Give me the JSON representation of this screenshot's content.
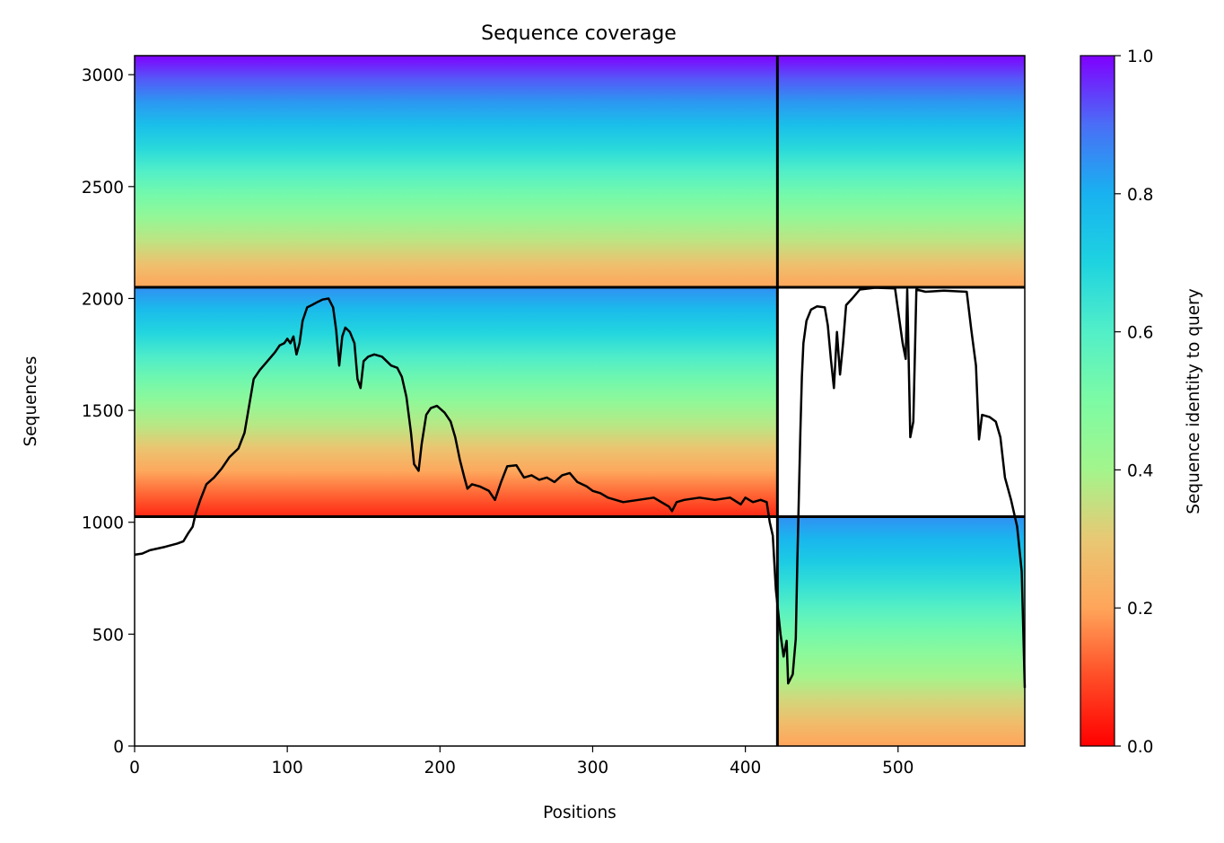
{
  "chart_data": {
    "type": "heatmap",
    "title": "Sequence coverage",
    "xlabel": "Positions",
    "ylabel": "Sequences",
    "xlim": [
      0,
      583
    ],
    "ylim": [
      0,
      3085
    ],
    "x_ticks": [
      0,
      100,
      200,
      300,
      400,
      500
    ],
    "y_ticks": [
      0,
      500,
      1000,
      1500,
      2000,
      2500,
      3000
    ],
    "grid": false,
    "colorbar": {
      "label": "Sequence identity to query",
      "colormap": "rainbow_r",
      "range": [
        0,
        1
      ],
      "ticks": [
        "0.0",
        "0.2",
        "0.4",
        "0.6",
        "0.8",
        "1.0"
      ]
    },
    "block_boundaries": {
      "vertical_lines_at_position": [
        421
      ],
      "horizontal_lines_at_sequence": [
        1025,
        2050
      ]
    },
    "coverage_blocks": [
      {
        "x_range": [
          0,
          421
        ],
        "y_range": [
          2050,
          3085
        ],
        "identity_top": 1.0,
        "identity_bottom": 0.2
      },
      {
        "x_range": [
          0,
          421
        ],
        "y_range": [
          1025,
          2050
        ],
        "identity_top": 0.85,
        "identity_bottom": 0.05
      },
      {
        "x_range": [
          421,
          583
        ],
        "y_range": [
          2050,
          3085
        ],
        "identity_top": 1.0,
        "identity_bottom": 0.2
      },
      {
        "x_range": [
          421,
          583
        ],
        "y_range": [
          0,
          1025
        ],
        "identity_top": 0.85,
        "identity_bottom": 0.2
      }
    ],
    "series": [
      {
        "type": "line",
        "color": "#000000",
        "points": [
          [
            0,
            855
          ],
          [
            5,
            860
          ],
          [
            10,
            875
          ],
          [
            20,
            890
          ],
          [
            28,
            905
          ],
          [
            32,
            915
          ],
          [
            35,
            950
          ],
          [
            38,
            980
          ],
          [
            40,
            1040
          ],
          [
            43,
            1100
          ],
          [
            47,
            1170
          ],
          [
            52,
            1200
          ],
          [
            57,
            1240
          ],
          [
            62,
            1290
          ],
          [
            68,
            1330
          ],
          [
            72,
            1400
          ],
          [
            75,
            1520
          ],
          [
            78,
            1640
          ],
          [
            82,
            1680
          ],
          [
            87,
            1720
          ],
          [
            92,
            1760
          ],
          [
            95,
            1790
          ],
          [
            98,
            1800
          ],
          [
            100,
            1820
          ],
          [
            102,
            1800
          ],
          [
            104,
            1830
          ],
          [
            106,
            1750
          ],
          [
            108,
            1800
          ],
          [
            110,
            1900
          ],
          [
            113,
            1960
          ],
          [
            116,
            1970
          ],
          [
            120,
            1985
          ],
          [
            123,
            1995
          ],
          [
            127,
            2000
          ],
          [
            130,
            1960
          ],
          [
            132,
            1860
          ],
          [
            134,
            1700
          ],
          [
            136,
            1830
          ],
          [
            138,
            1870
          ],
          [
            141,
            1850
          ],
          [
            144,
            1800
          ],
          [
            146,
            1640
          ],
          [
            148,
            1600
          ],
          [
            150,
            1720
          ],
          [
            153,
            1740
          ],
          [
            157,
            1750
          ],
          [
            162,
            1740
          ],
          [
            168,
            1700
          ],
          [
            172,
            1690
          ],
          [
            175,
            1650
          ],
          [
            178,
            1560
          ],
          [
            181,
            1400
          ],
          [
            183,
            1260
          ],
          [
            186,
            1230
          ],
          [
            188,
            1350
          ],
          [
            191,
            1480
          ],
          [
            194,
            1510
          ],
          [
            198,
            1520
          ],
          [
            203,
            1490
          ],
          [
            207,
            1450
          ],
          [
            210,
            1380
          ],
          [
            213,
            1280
          ],
          [
            216,
            1200
          ],
          [
            218,
            1150
          ],
          [
            221,
            1170
          ],
          [
            226,
            1160
          ],
          [
            232,
            1140
          ],
          [
            236,
            1100
          ],
          [
            240,
            1180
          ],
          [
            244,
            1250
          ],
          [
            250,
            1255
          ],
          [
            255,
            1200
          ],
          [
            260,
            1210
          ],
          [
            265,
            1190
          ],
          [
            270,
            1200
          ],
          [
            275,
            1180
          ],
          [
            280,
            1210
          ],
          [
            285,
            1220
          ],
          [
            290,
            1180
          ],
          [
            296,
            1160
          ],
          [
            300,
            1140
          ],
          [
            305,
            1130
          ],
          [
            310,
            1110
          ],
          [
            320,
            1090
          ],
          [
            330,
            1100
          ],
          [
            340,
            1110
          ],
          [
            350,
            1070
          ],
          [
            352,
            1050
          ],
          [
            355,
            1090
          ],
          [
            360,
            1100
          ],
          [
            370,
            1110
          ],
          [
            380,
            1100
          ],
          [
            390,
            1110
          ],
          [
            397,
            1080
          ],
          [
            400,
            1110
          ],
          [
            405,
            1090
          ],
          [
            410,
            1100
          ],
          [
            414,
            1090
          ],
          [
            416,
            1000
          ],
          [
            418,
            940
          ],
          [
            420,
            700
          ],
          [
            423,
            500
          ],
          [
            425,
            400
          ],
          [
            427,
            470
          ],
          [
            428,
            280
          ],
          [
            431,
            320
          ],
          [
            433,
            480
          ],
          [
            434,
            820
          ],
          [
            436,
            1400
          ],
          [
            437,
            1650
          ],
          [
            438,
            1800
          ],
          [
            440,
            1900
          ],
          [
            443,
            1950
          ],
          [
            447,
            1965
          ],
          [
            452,
            1960
          ],
          [
            454,
            1880
          ],
          [
            456,
            1730
          ],
          [
            458,
            1600
          ],
          [
            460,
            1850
          ],
          [
            462,
            1660
          ],
          [
            464,
            1800
          ],
          [
            466,
            1970
          ],
          [
            470,
            2000
          ],
          [
            475,
            2040
          ],
          [
            485,
            2048
          ],
          [
            498,
            2045
          ],
          [
            503,
            1800
          ],
          [
            505,
            1730
          ],
          [
            506,
            2040
          ],
          [
            508,
            1380
          ],
          [
            510,
            1450
          ],
          [
            512,
            2040
          ],
          [
            518,
            2030
          ],
          [
            530,
            2035
          ],
          [
            545,
            2030
          ],
          [
            548,
            1860
          ],
          [
            551,
            1700
          ],
          [
            553,
            1370
          ],
          [
            555,
            1480
          ],
          [
            560,
            1470
          ],
          [
            564,
            1450
          ],
          [
            567,
            1380
          ],
          [
            570,
            1200
          ],
          [
            574,
            1100
          ],
          [
            578,
            980
          ],
          [
            581,
            780
          ],
          [
            583,
            260
          ]
        ]
      }
    ]
  }
}
